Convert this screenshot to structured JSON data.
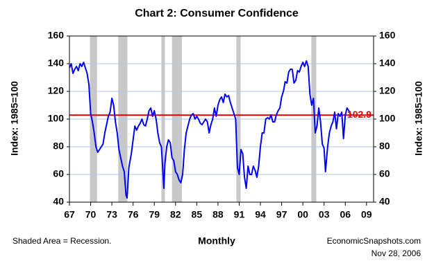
{
  "chart_data": {
    "type": "line",
    "title": "Chart 2: Consumer Confidence",
    "y_label": "Index: 1985=100",
    "y2_label": "Index: 1985=100",
    "x_label": "Monthly",
    "note": "Shaded Area = Recession.",
    "source": "EconomicSnapshots.com",
    "date": "Nov 28, 2006",
    "xlim": [
      1967,
      2010
    ],
    "xticks": [
      {
        "value": 1967,
        "label": "67"
      },
      {
        "value": 1970,
        "label": "70"
      },
      {
        "value": 1973,
        "label": "73"
      },
      {
        "value": 1976,
        "label": "76"
      },
      {
        "value": 1979,
        "label": "79"
      },
      {
        "value": 1982,
        "label": "82"
      },
      {
        "value": 1985,
        "label": "85"
      },
      {
        "value": 1988,
        "label": "88"
      },
      {
        "value": 1991,
        "label": "91"
      },
      {
        "value": 1994,
        "label": "94"
      },
      {
        "value": 1997,
        "label": "97"
      },
      {
        "value": 2000,
        "label": "00"
      },
      {
        "value": 2003,
        "label": "03"
      },
      {
        "value": 2006,
        "label": "06"
      },
      {
        "value": 2009,
        "label": "09"
      }
    ],
    "ylim": [
      40,
      160
    ],
    "yticks": [
      40,
      60,
      80,
      100,
      120,
      140,
      160
    ],
    "y2lim": [
      40,
      160
    ],
    "y2ticks": [
      40,
      60,
      80,
      100,
      120,
      140,
      160
    ],
    "grid": true,
    "grid_color": "#a6caf0",
    "recession_color": "#c8c8c8",
    "recessions": [
      [
        1969.9,
        1970.9
      ],
      [
        1973.9,
        1975.2
      ],
      [
        1980.0,
        1980.5
      ],
      [
        1981.5,
        1982.9
      ],
      [
        1990.6,
        1991.2
      ],
      [
        2001.2,
        2001.9
      ]
    ],
    "reference_line": {
      "value": 102.9,
      "color": "#e00000"
    },
    "x": [
      1967.0,
      1967.25,
      1967.5,
      1967.75,
      1968.0,
      1968.25,
      1968.5,
      1968.75,
      1969.0,
      1969.25,
      1969.5,
      1969.75,
      1970.0,
      1970.25,
      1970.5,
      1970.75,
      1971.0,
      1971.25,
      1971.5,
      1971.75,
      1972.0,
      1972.25,
      1972.5,
      1972.75,
      1973.0,
      1973.25,
      1973.5,
      1973.75,
      1974.0,
      1974.25,
      1974.5,
      1974.75,
      1975.0,
      1975.15,
      1975.4,
      1975.75,
      1976.0,
      1976.25,
      1976.5,
      1976.75,
      1977.0,
      1977.25,
      1977.5,
      1977.75,
      1978.0,
      1978.25,
      1978.5,
      1978.75,
      1979.0,
      1979.25,
      1979.5,
      1979.75,
      1980.0,
      1980.35,
      1980.5,
      1980.75,
      1981.0,
      1981.25,
      1981.5,
      1981.75,
      1982.0,
      1982.25,
      1982.5,
      1982.75,
      1983.0,
      1983.25,
      1983.5,
      1983.75,
      1984.0,
      1984.25,
      1984.5,
      1984.75,
      1985.0,
      1985.25,
      1985.5,
      1985.75,
      1986.0,
      1986.25,
      1986.5,
      1986.75,
      1987.0,
      1987.25,
      1987.5,
      1987.75,
      1988.0,
      1988.25,
      1988.5,
      1988.75,
      1989.0,
      1989.25,
      1989.5,
      1989.75,
      1990.0,
      1990.25,
      1990.5,
      1990.75,
      1991.0,
      1991.25,
      1991.5,
      1991.75,
      1992.0,
      1992.25,
      1992.5,
      1992.75,
      1993.0,
      1993.25,
      1993.5,
      1993.75,
      1994.0,
      1994.25,
      1994.5,
      1994.75,
      1995.0,
      1995.25,
      1995.5,
      1995.75,
      1996.0,
      1996.25,
      1996.5,
      1996.75,
      1997.0,
      1997.25,
      1997.5,
      1997.75,
      1998.0,
      1998.25,
      1998.5,
      1998.75,
      1999.0,
      1999.25,
      1999.5,
      1999.75,
      2000.0,
      2000.25,
      2000.5,
      2000.75,
      2001.0,
      2001.25,
      2001.5,
      2001.75,
      2002.0,
      2002.25,
      2002.5,
      2002.75,
      2003.0,
      2003.2,
      2003.5,
      2003.75,
      2004.0,
      2004.25,
      2004.5,
      2004.75,
      2005.0,
      2005.25,
      2005.5,
      2005.75,
      2006.0,
      2006.25,
      2006.5,
      2006.75,
      2006.83
    ],
    "series": [
      {
        "color": "#0000ff",
        "values": [
          137,
          140,
          133,
          136,
          138,
          135,
          140,
          138,
          141,
          137,
          133,
          125,
          104,
          98,
          90,
          80,
          76,
          78,
          80,
          82,
          90,
          96,
          102,
          105,
          115,
          110,
          98,
          90,
          78,
          72,
          66,
          62,
          45,
          43,
          65,
          75,
          85,
          95,
          92,
          95,
          97,
          100,
          96,
          95,
          100,
          106,
          108,
          102,
          106,
          100,
          90,
          83,
          80,
          50,
          68,
          80,
          85,
          83,
          72,
          70,
          62,
          60,
          56,
          54,
          60,
          78,
          90,
          95,
          100,
          103,
          104,
          100,
          102,
          100,
          97,
          96,
          98,
          100,
          98,
          90,
          96,
          100,
          108,
          102,
          110,
          114,
          116,
          112,
          118,
          116,
          117,
          112,
          108,
          104,
          100,
          65,
          60,
          78,
          75,
          58,
          50,
          66,
          60,
          60,
          66,
          63,
          58,
          66,
          80,
          90,
          90,
          100,
          101,
          100,
          103,
          98,
          98,
          103,
          106,
          108,
          116,
          120,
          127,
          126,
          134,
          136,
          136,
          126,
          128,
          135,
          134,
          138,
          141,
          138,
          142,
          138,
          118,
          110,
          115,
          90,
          95,
          108,
          98,
          82,
          79,
          62,
          80,
          90,
          95,
          98,
          105,
          93,
          104,
          102,
          105,
          86,
          103,
          108,
          106,
          103.5,
          102.9
        ]
      }
    ]
  }
}
